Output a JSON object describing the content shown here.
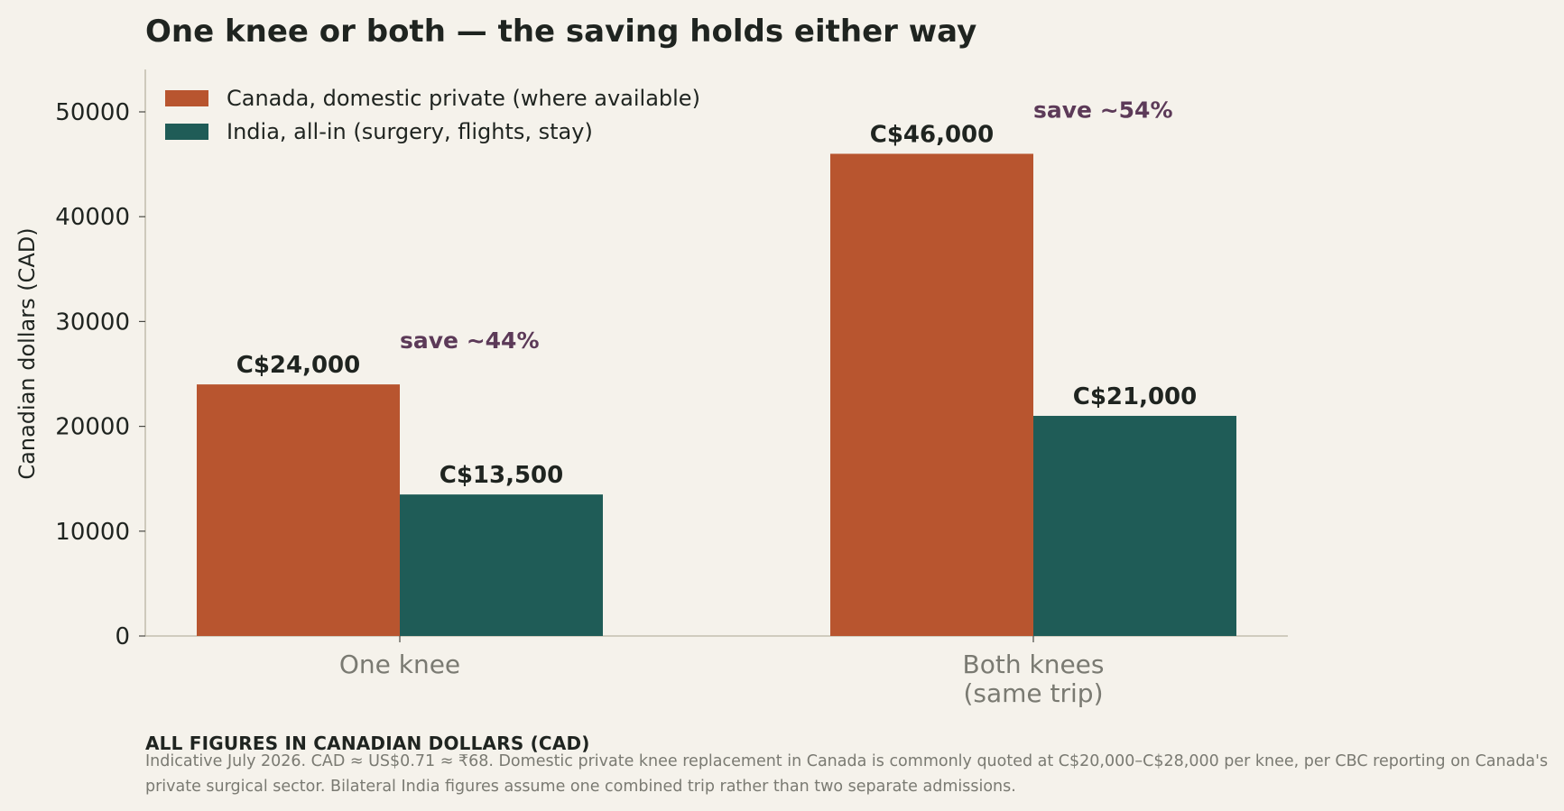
{
  "colors": {
    "canada": "#b8552f",
    "india": "#1f5c57",
    "saving_text": "#5c3a58",
    "background": "#f5f2eb",
    "text_dark": "#1f2420",
    "tick_label_muted": "#7a7a72",
    "axis_line": "#c4bfb0"
  },
  "chart_data": {
    "type": "bar",
    "title": "One knee or both — the saving holds either way",
    "xlabel": "",
    "ylabel": "Canadian dollars (CAD)",
    "ylim": [
      0,
      54000
    ],
    "yticks": [
      0,
      10000,
      20000,
      30000,
      40000,
      50000
    ],
    "grid": false,
    "legend_position": "top-left",
    "categories": [
      [
        "One knee"
      ],
      [
        "Both knees",
        "(same trip)"
      ]
    ],
    "series": [
      {
        "name": "Canada, domestic private (where available)",
        "color": "#b8552f",
        "values": [
          24000,
          46000
        ],
        "labels": [
          "C$24,000",
          "C$46,000"
        ]
      },
      {
        "name": "India, all-in (surgery, flights, stay)",
        "color": "#1f5c57",
        "values": [
          13500,
          21000
        ],
        "labels": [
          "C$13,500",
          "C$21,000"
        ]
      }
    ],
    "annotations": [
      {
        "text": "save ~44%",
        "category_index": 0
      },
      {
        "text": "save ~54%",
        "category_index": 1
      }
    ]
  },
  "footnote": {
    "heading": "ALL FIGURES IN CANADIAN DOLLARS (CAD)",
    "text": "Indicative July 2026. CAD ≈ US$0.71 ≈ ₹68. Domestic private knee replacement in Canada is commonly quoted at C$20,000–C$28,000 per knee, per CBC reporting on Canada's private surgical sector. Bilateral India figures assume one combined trip rather than two separate admissions."
  }
}
